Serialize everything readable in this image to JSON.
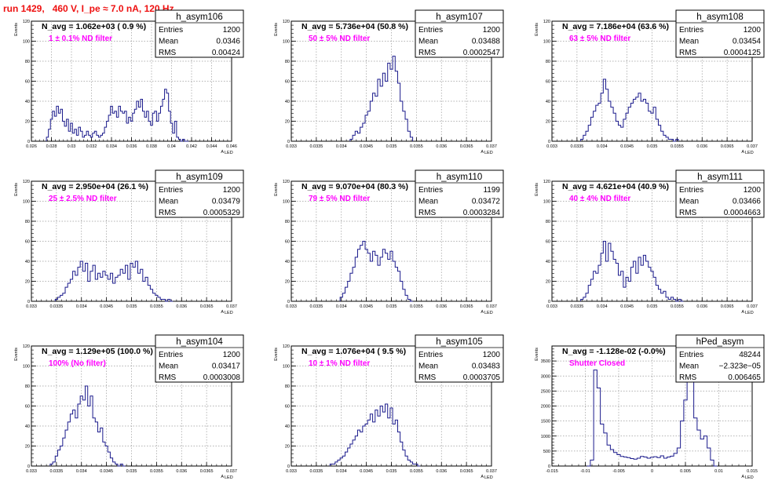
{
  "page_title": "run 1429,   460 V, I_pe ≈ 7.0 nA, 120 Hz",
  "chart_data": [
    {
      "type": "histogram",
      "name": "h_asym106",
      "n_avg_label": "N_avg = 1.062e+03 ( 0.9 %)",
      "filter_label": "1 ± 0.1% ND filter",
      "stats": {
        "entries_label": "Entries",
        "entries": "1200",
        "mean_label": "Mean",
        "mean": "0.0346",
        "rms_label": "RMS",
        "rms": "0.00424"
      },
      "xlim": [
        0.026,
        0.046
      ],
      "ylim": [
        0,
        120
      ],
      "xticks": [
        "0.026",
        "0.028",
        "0.03",
        "0.032",
        "0.034",
        "0.036",
        "0.038",
        "0.04",
        "0.042",
        "0.044",
        "0.046"
      ],
      "yticks": [
        "0",
        "20",
        "40",
        "60",
        "80",
        "100",
        "120"
      ],
      "xlabel": "A_LED",
      "ylabel": "Events",
      "bin_x": [
        0.0276,
        0.0278,
        0.028,
        0.0282,
        0.0284,
        0.0286,
        0.0288,
        0.029,
        0.0292,
        0.0294,
        0.0296,
        0.0298,
        0.03,
        0.0302,
        0.0304,
        0.0306,
        0.0308,
        0.031,
        0.0312,
        0.0314,
        0.0316,
        0.0318,
        0.032,
        0.0322,
        0.0324,
        0.0326,
        0.0328,
        0.033,
        0.0332,
        0.0334,
        0.0336,
        0.0338,
        0.034,
        0.0342,
        0.0344,
        0.0346,
        0.0348,
        0.035,
        0.0352,
        0.0354,
        0.0356,
        0.0358,
        0.036,
        0.0362,
        0.0364,
        0.0366,
        0.0368,
        0.037,
        0.0372,
        0.0374,
        0.0376,
        0.0378,
        0.038,
        0.0382,
        0.0384,
        0.0386,
        0.0388,
        0.039,
        0.0392,
        0.0394,
        0.0396,
        0.0398,
        0.04,
        0.0402,
        0.0404,
        0.0406,
        0.0408,
        0.041,
        0.0412,
        0.0414,
        0.0416
      ],
      "values": [
        4,
        12,
        22,
        30,
        25,
        35,
        28,
        32,
        20,
        15,
        22,
        10,
        18,
        8,
        12,
        6,
        14,
        10,
        4,
        6,
        10,
        6,
        4,
        8,
        10,
        6,
        4,
        6,
        8,
        14,
        20,
        26,
        35,
        28,
        30,
        24,
        35,
        30,
        28,
        30,
        18,
        24,
        20,
        28,
        32,
        40,
        34,
        42,
        30,
        24,
        30,
        20,
        16,
        28,
        30,
        20,
        28,
        35,
        42,
        52,
        48,
        30,
        18,
        8,
        20,
        4,
        2,
        0,
        2,
        0,
        0
      ]
    },
    {
      "type": "histogram",
      "name": "h_asym107",
      "n_avg_label": "N_avg = 5.736e+04 (50.8 %)",
      "filter_label": "50 ± 5% ND filter",
      "stats": {
        "entries_label": "Entries",
        "entries": "1200",
        "mean_label": "Mean",
        "mean": "0.03488",
        "rms_label": "RMS",
        "rms": "0.0002547"
      },
      "xlim": [
        0.033,
        0.037
      ],
      "ylim": [
        0,
        120
      ],
      "xticks": [
        "0.033",
        "0.0335",
        "0.034",
        "0.0345",
        "0.035",
        "0.0355",
        "0.036",
        "0.0365",
        "0.037"
      ],
      "yticks": [
        "0",
        "20",
        "40",
        "60",
        "80",
        "100",
        "120"
      ],
      "xlabel": "A_LED",
      "ylabel": "Events",
      "bin_x": [
        0.0342,
        0.03425,
        0.0343,
        0.03435,
        0.0344,
        0.03445,
        0.0345,
        0.03455,
        0.0346,
        0.03465,
        0.0347,
        0.03475,
        0.0348,
        0.03485,
        0.0349,
        0.03495,
        0.035,
        0.03505,
        0.0351,
        0.03515,
        0.0352,
        0.03525,
        0.0353,
        0.03535,
        0.0354
      ],
      "values": [
        2,
        6,
        10,
        8,
        14,
        18,
        26,
        30,
        40,
        48,
        45,
        62,
        55,
        68,
        60,
        78,
        72,
        85,
        70,
        58,
        40,
        30,
        22,
        10,
        4
      ]
    },
    {
      "type": "histogram",
      "name": "h_asym108",
      "n_avg_label": "N_avg = 7.186e+04 (63.6 %)",
      "filter_label": "63 ± 5% ND filter",
      "stats": {
        "entries_label": "Entries",
        "entries": "1200",
        "mean_label": "Mean",
        "mean": "0.03454",
        "rms_label": "RMS",
        "rms": "0.0004125"
      },
      "xlim": [
        0.033,
        0.037
      ],
      "ylim": [
        0,
        120
      ],
      "xticks": [
        "0.033",
        "0.0335",
        "0.034",
        "0.0345",
        "0.035",
        "0.0355",
        "0.036",
        "0.0365",
        "0.037"
      ],
      "yticks": [
        "0",
        "20",
        "40",
        "60",
        "80",
        "100",
        "120"
      ],
      "xlabel": "A_LED",
      "ylabel": "Events",
      "bin_x": [
        0.0336,
        0.03365,
        0.0337,
        0.03375,
        0.0338,
        0.03385,
        0.0339,
        0.03395,
        0.034,
        0.03405,
        0.0341,
        0.03415,
        0.0342,
        0.03425,
        0.0343,
        0.03435,
        0.0344,
        0.03445,
        0.0345,
        0.03455,
        0.0346,
        0.03465,
        0.0347,
        0.03475,
        0.0348,
        0.03485,
        0.0349,
        0.03495,
        0.035,
        0.03505,
        0.0351,
        0.03515,
        0.0352,
        0.03525,
        0.0353,
        0.03535,
        0.0354,
        0.03545,
        0.0355
      ],
      "values": [
        2,
        6,
        10,
        16,
        24,
        30,
        36,
        38,
        48,
        62,
        52,
        40,
        34,
        28,
        20,
        16,
        14,
        22,
        28,
        34,
        38,
        42,
        44,
        48,
        40,
        42,
        38,
        30,
        28,
        34,
        22,
        16,
        10,
        6,
        4,
        2,
        2,
        0,
        2
      ]
    },
    {
      "type": "histogram",
      "name": "h_asym109",
      "n_avg_label": "N_avg = 2.950e+04 (26.1 %)",
      "filter_label": "25 ± 2.5% ND filter",
      "stats": {
        "entries_label": "Entries",
        "entries": "1200",
        "mean_label": "Mean",
        "mean": "0.03479",
        "rms_label": "RMS",
        "rms": "0.0005329"
      },
      "xlim": [
        0.033,
        0.037
      ],
      "ylim": [
        0,
        120
      ],
      "xticks": [
        "0.033",
        "0.0335",
        "0.034",
        "0.0345",
        "0.035",
        "0.0355",
        "0.036",
        "0.0365",
        "0.037"
      ],
      "yticks": [
        "0",
        "20",
        "40",
        "60",
        "80",
        "100",
        "120"
      ],
      "xlabel": "A_LED",
      "ylabel": "Events",
      "bin_x": [
        0.0335,
        0.03355,
        0.0336,
        0.03365,
        0.0337,
        0.03375,
        0.0338,
        0.03385,
        0.0339,
        0.03395,
        0.034,
        0.03405,
        0.0341,
        0.03415,
        0.0342,
        0.03425,
        0.0343,
        0.03435,
        0.0344,
        0.03445,
        0.0345,
        0.03455,
        0.0346,
        0.03465,
        0.0347,
        0.03475,
        0.0348,
        0.03485,
        0.0349,
        0.03495,
        0.035,
        0.03505,
        0.0351,
        0.03515,
        0.0352,
        0.03525,
        0.0353,
        0.03535,
        0.0354,
        0.03545,
        0.0355,
        0.03555,
        0.0356,
        0.03565,
        0.0357,
        0.03575,
        0.0358
      ],
      "values": [
        2,
        4,
        6,
        8,
        14,
        18,
        22,
        30,
        26,
        34,
        40,
        30,
        38,
        20,
        30,
        36,
        22,
        28,
        24,
        30,
        26,
        22,
        28,
        18,
        24,
        26,
        32,
        28,
        36,
        22,
        38,
        34,
        40,
        28,
        32,
        20,
        24,
        16,
        12,
        8,
        6,
        4,
        2,
        2,
        0,
        2,
        0
      ]
    },
    {
      "type": "histogram",
      "name": "h_asym110",
      "n_avg_label": "N_avg = 9.070e+04 (80.3 %)",
      "filter_label": "79 ± 5% ND filter",
      "stats": {
        "entries_label": "Entries",
        "entries": "1199",
        "mean_label": "Mean",
        "mean": "0.03472",
        "rms_label": "RMS",
        "rms": "0.0003284"
      },
      "xlim": [
        0.033,
        0.037
      ],
      "ylim": [
        0,
        120
      ],
      "xticks": [
        "0.033",
        "0.0335",
        "0.034",
        "0.0345",
        "0.035",
        "0.0355",
        "0.036",
        "0.0365",
        "0.037"
      ],
      "yticks": [
        "0",
        "20",
        "40",
        "60",
        "80",
        "100",
        "120"
      ],
      "xlabel": "A_LED",
      "ylabel": "Events",
      "bin_x": [
        0.034,
        0.03405,
        0.0341,
        0.03415,
        0.0342,
        0.03425,
        0.0343,
        0.03435,
        0.0344,
        0.03445,
        0.0345,
        0.03455,
        0.0346,
        0.03465,
        0.0347,
        0.03475,
        0.0348,
        0.03485,
        0.0349,
        0.03495,
        0.035,
        0.03505,
        0.0351,
        0.03515,
        0.0352,
        0.03525,
        0.0353,
        0.03535,
        0.0354
      ],
      "values": [
        4,
        8,
        14,
        20,
        28,
        34,
        44,
        52,
        56,
        60,
        52,
        48,
        40,
        50,
        46,
        36,
        44,
        52,
        48,
        42,
        50,
        40,
        34,
        30,
        20,
        12,
        6,
        2,
        0
      ]
    },
    {
      "type": "histogram",
      "name": "h_asym111",
      "n_avg_label": "N_avg = 4.621e+04 (40.9 %)",
      "filter_label": "40 ± 4% ND filter",
      "stats": {
        "entries_label": "Entries",
        "entries": "1200",
        "mean_label": "Mean",
        "mean": "0.03466",
        "rms_label": "RMS",
        "rms": "0.0004663"
      },
      "xlim": [
        0.033,
        0.037
      ],
      "ylim": [
        0,
        120
      ],
      "xticks": [
        "0.033",
        "0.0335",
        "0.034",
        "0.0345",
        "0.035",
        "0.0355",
        "0.036",
        "0.0365",
        "0.037"
      ],
      "yticks": [
        "0",
        "20",
        "40",
        "60",
        "80",
        "100",
        "120"
      ],
      "xlabel": "A_LED",
      "ylabel": "Events",
      "bin_x": [
        0.0336,
        0.03365,
        0.0337,
        0.03375,
        0.0338,
        0.03385,
        0.0339,
        0.03395,
        0.034,
        0.03405,
        0.0341,
        0.03415,
        0.0342,
        0.03425,
        0.0343,
        0.03435,
        0.0344,
        0.03445,
        0.0345,
        0.03455,
        0.0346,
        0.03465,
        0.0347,
        0.03475,
        0.0348,
        0.03485,
        0.0349,
        0.03495,
        0.035,
        0.03505,
        0.0351,
        0.03515,
        0.0352,
        0.03525,
        0.0353,
        0.03535,
        0.0354,
        0.03545,
        0.0355,
        0.03555,
        0.0356
      ],
      "values": [
        2,
        4,
        8,
        16,
        22,
        30,
        28,
        36,
        48,
        60,
        40,
        58,
        50,
        42,
        38,
        26,
        30,
        14,
        24,
        20,
        34,
        40,
        28,
        44,
        36,
        46,
        40,
        34,
        30,
        24,
        16,
        12,
        8,
        10,
        4,
        2,
        4,
        2,
        0,
        2,
        0
      ]
    },
    {
      "type": "histogram",
      "name": "h_asym104",
      "n_avg_label": "N_avg = 1.129e+05 (100.0 %)",
      "filter_label": "100% (No filter)",
      "stats": {
        "entries_label": "Entries",
        "entries": "1200",
        "mean_label": "Mean",
        "mean": "0.03417",
        "rms_label": "RMS",
        "rms": "0.0003008"
      },
      "xlim": [
        0.033,
        0.037
      ],
      "ylim": [
        0,
        120
      ],
      "xticks": [
        "0.033",
        "0.0335",
        "0.034",
        "0.0345",
        "0.035",
        "0.0355",
        "0.036",
        "0.0365",
        "0.037"
      ],
      "yticks": [
        "0",
        "20",
        "40",
        "60",
        "80",
        "100",
        "120"
      ],
      "xlabel": "A_LED",
      "ylabel": "Events",
      "bin_x": [
        0.0334,
        0.03345,
        0.0335,
        0.03355,
        0.0336,
        0.03365,
        0.0337,
        0.03375,
        0.0338,
        0.03385,
        0.0339,
        0.03395,
        0.034,
        0.03405,
        0.0341,
        0.03415,
        0.0342,
        0.03425,
        0.0343,
        0.03435,
        0.0344,
        0.03445,
        0.0345,
        0.03455,
        0.0346,
        0.03465,
        0.0347,
        0.03475,
        0.0348,
        0.03485
      ],
      "values": [
        2,
        4,
        10,
        16,
        20,
        28,
        36,
        44,
        52,
        56,
        48,
        62,
        70,
        66,
        80,
        60,
        70,
        48,
        44,
        34,
        38,
        24,
        20,
        14,
        8,
        4,
        2,
        0,
        2,
        0
      ]
    },
    {
      "type": "histogram",
      "name": "h_asym105",
      "n_avg_label": "N_avg = 1.076e+04 ( 9.5 %)",
      "filter_label": "10 ± 1% ND filter",
      "stats": {
        "entries_label": "Entries",
        "entries": "1200",
        "mean_label": "Mean",
        "mean": "0.03483",
        "rms_label": "RMS",
        "rms": "0.0003705"
      },
      "xlim": [
        0.033,
        0.037
      ],
      "ylim": [
        0,
        120
      ],
      "xticks": [
        "0.033",
        "0.0335",
        "0.034",
        "0.0345",
        "0.035",
        "0.0355",
        "0.036",
        "0.0365",
        "0.037"
      ],
      "yticks": [
        "0",
        "20",
        "40",
        "60",
        "80",
        "100",
        "120"
      ],
      "xlabel": "A_LED",
      "ylabel": "Events",
      "bin_x": [
        0.0338,
        0.03385,
        0.0339,
        0.03395,
        0.034,
        0.03405,
        0.0341,
        0.03415,
        0.0342,
        0.03425,
        0.0343,
        0.03435,
        0.0344,
        0.03445,
        0.0345,
        0.03455,
        0.0346,
        0.03465,
        0.0347,
        0.03475,
        0.0348,
        0.03485,
        0.0349,
        0.03495,
        0.035,
        0.03505,
        0.0351,
        0.03515,
        0.0352,
        0.03525,
        0.0353,
        0.03535,
        0.0354,
        0.03545,
        0.0355,
        0.03555
      ],
      "values": [
        2,
        2,
        4,
        6,
        8,
        10,
        14,
        18,
        22,
        26,
        30,
        36,
        34,
        40,
        42,
        46,
        52,
        44,
        56,
        50,
        60,
        54,
        62,
        48,
        58,
        42,
        46,
        34,
        24,
        16,
        10,
        6,
        4,
        2,
        2,
        0
      ]
    },
    {
      "type": "histogram",
      "name": "hPed_asym",
      "n_avg_label": "N_avg = -1.128e-02 (-0.0%)",
      "filter_label": "Shutter Closed",
      "stats": {
        "entries_label": "Entries",
        "entries": "48244",
        "mean_label": "Mean",
        "mean": "−2.323e−05",
        "rms_label": "RMS",
        "rms": "0.006465"
      },
      "xlim": [
        -0.015,
        0.015
      ],
      "ylim": [
        0,
        4000
      ],
      "xticks": [
        "-0.015",
        "-0.01",
        "-0.005",
        "0",
        "0.005",
        "0.01",
        "0.015"
      ],
      "yticks": [
        "0",
        "500",
        "1000",
        "1500",
        "2000",
        "2500",
        "3000",
        "3500"
      ],
      "xlabel": "A_LED",
      "ylabel": "Events",
      "bin_x": [
        -0.0095,
        -0.009,
        -0.0085,
        -0.008,
        -0.0075,
        -0.007,
        -0.0065,
        -0.006,
        -0.0055,
        -0.005,
        -0.0045,
        -0.004,
        -0.0035,
        -0.003,
        -0.0025,
        -0.002,
        -0.0015,
        -0.001,
        -0.0005,
        0,
        0.0005,
        0.001,
        0.0015,
        0.002,
        0.0025,
        0.003,
        0.0035,
        0.004,
        0.0045,
        0.005,
        0.0055,
        0.006,
        0.0065,
        0.007,
        0.0075,
        0.008,
        0.0085,
        0.009,
        0.0095
      ],
      "values": [
        0,
        200,
        3200,
        2600,
        1400,
        1100,
        700,
        550,
        450,
        380,
        320,
        300,
        280,
        250,
        230,
        260,
        320,
        300,
        260,
        290,
        310,
        280,
        340,
        260,
        300,
        330,
        420,
        600,
        1500,
        2200,
        3400,
        2800,
        1600,
        1200,
        900,
        1000,
        600,
        200,
        0
      ]
    }
  ]
}
